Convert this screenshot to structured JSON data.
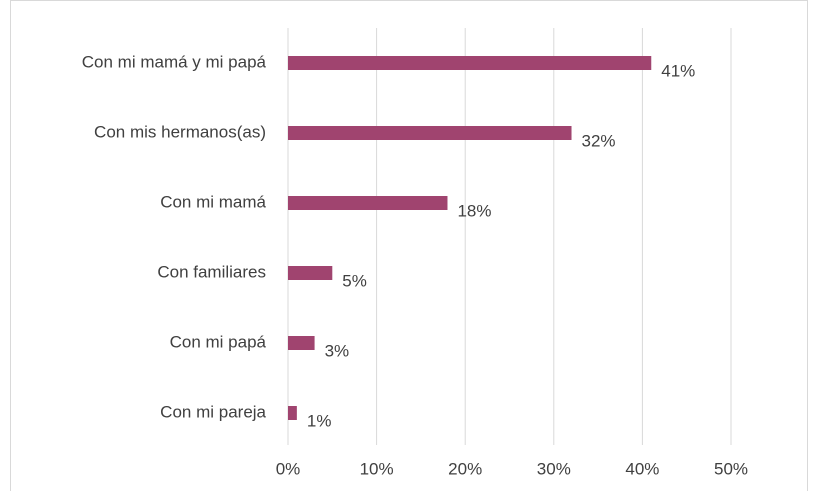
{
  "chart_data": {
    "type": "barh",
    "categories": [
      "Con mi mamá y mi papá",
      "Con mis hermanos(as)",
      "Con mi mamá",
      "Con familiares",
      "Con mi papá",
      "Con mi pareja"
    ],
    "values": [
      41,
      32,
      18,
      5,
      3,
      1
    ],
    "value_labels": [
      "41%",
      "32%",
      "18%",
      "5%",
      "3%",
      "1%"
    ],
    "color": "#a0446f",
    "xlim": [
      0,
      50
    ],
    "xticks": [
      {
        "value": 0,
        "label": "0%"
      },
      {
        "value": 10,
        "label": "10%"
      },
      {
        "value": 20,
        "label": "20%"
      },
      {
        "value": 30,
        "label": "30%"
      },
      {
        "value": 40,
        "label": "40%"
      },
      {
        "value": 50,
        "label": "50%"
      }
    ],
    "grid": true
  }
}
